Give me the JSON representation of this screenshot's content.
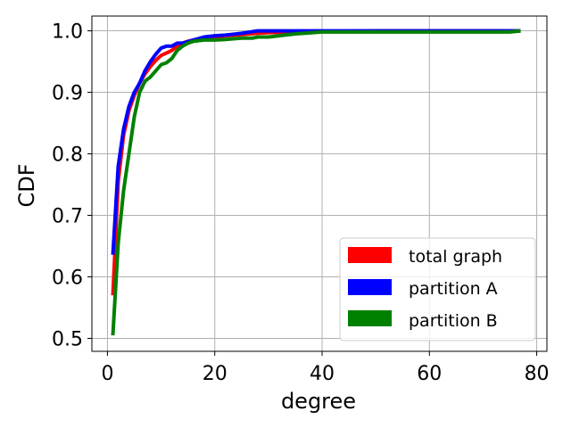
{
  "chart_data": {
    "type": "line",
    "xlabel": "degree",
    "ylabel": "CDF",
    "xlim": [
      -2.9,
      81.9
    ],
    "ylim": [
      0.479,
      1.024
    ],
    "xticks": [
      0,
      20,
      40,
      60,
      80
    ],
    "yticks": [
      0.5,
      0.6,
      0.7,
      0.8,
      0.9,
      1.0
    ],
    "xtick_labels": [
      "0",
      "20",
      "40",
      "60",
      "80"
    ],
    "ytick_labels": [
      "0.5",
      "0.6",
      "0.7",
      "0.8",
      "0.9",
      "1.0"
    ],
    "grid": true,
    "legend_position": "lower-right",
    "series": [
      {
        "name": "total graph",
        "color": "#ff0000",
        "x": [
          1,
          2,
          3,
          4,
          5,
          6,
          7,
          8,
          9,
          10,
          11,
          12,
          13,
          14,
          15,
          16,
          18,
          20,
          22,
          25,
          28,
          30,
          35,
          40,
          50,
          60,
          70,
          77
        ],
        "y": [
          0.57,
          0.755,
          0.83,
          0.87,
          0.895,
          0.915,
          0.93,
          0.942,
          0.952,
          0.96,
          0.964,
          0.968,
          0.975,
          0.98,
          0.983,
          0.985,
          0.988,
          0.99,
          0.992,
          0.994,
          0.996,
          0.997,
          0.998,
          0.999,
          1.0,
          1.0,
          1.0,
          1.0
        ]
      },
      {
        "name": "partition A",
        "color": "#0000ff",
        "x": [
          1,
          2,
          3,
          4,
          5,
          6,
          7,
          8,
          9,
          10,
          11,
          12,
          13,
          14,
          16,
          18,
          20,
          22,
          25,
          28,
          30,
          35,
          40,
          50,
          60,
          70,
          77
        ],
        "y": [
          0.636,
          0.78,
          0.84,
          0.877,
          0.9,
          0.915,
          0.935,
          0.95,
          0.962,
          0.972,
          0.975,
          0.975,
          0.98,
          0.98,
          0.985,
          0.99,
          0.992,
          0.993,
          0.996,
          1.0,
          1.0,
          1.0,
          1.0,
          1.0,
          1.0,
          1.0,
          1.0
        ]
      },
      {
        "name": "partition B",
        "color": "#008000",
        "x": [
          1,
          2,
          3,
          4,
          5,
          6,
          7,
          8,
          9,
          10,
          11,
          12,
          13,
          14,
          15,
          16,
          18,
          20,
          22,
          25,
          27,
          28,
          30,
          35,
          40,
          50,
          60,
          70,
          75,
          77
        ],
        "y": [
          0.505,
          0.655,
          0.74,
          0.8,
          0.86,
          0.9,
          0.918,
          0.925,
          0.935,
          0.945,
          0.948,
          0.955,
          0.968,
          0.975,
          0.98,
          0.983,
          0.985,
          0.985,
          0.986,
          0.988,
          0.988,
          0.99,
          0.99,
          0.995,
          0.998,
          0.998,
          0.998,
          0.998,
          0.998,
          1.0
        ]
      }
    ]
  }
}
